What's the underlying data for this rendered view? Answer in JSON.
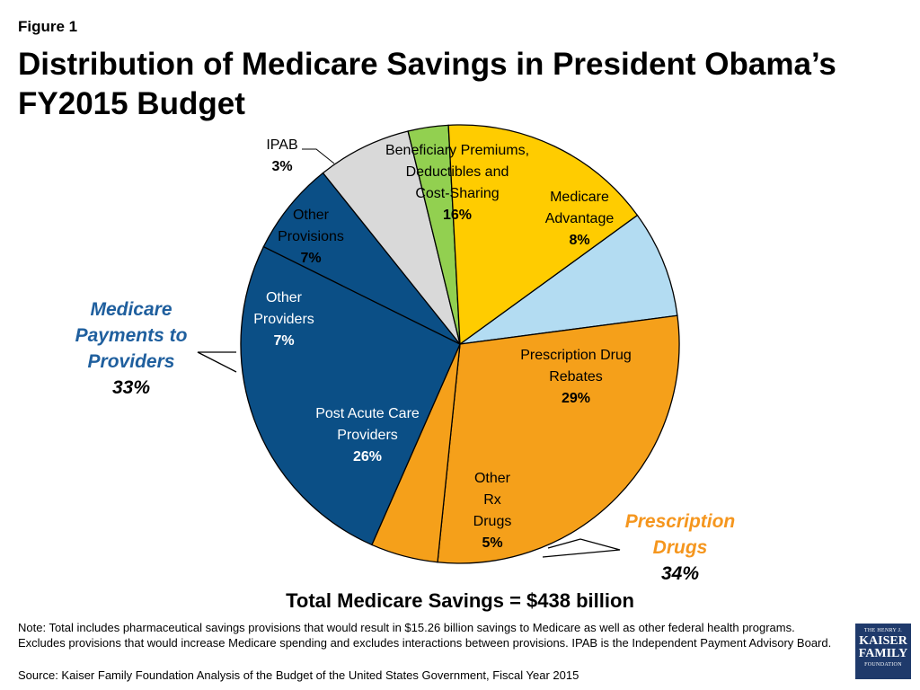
{
  "figure_label": "Figure 1",
  "title": "Distribution of Medicare Savings in President Obama’s FY2015 Budget",
  "total_label": "Total Medicare Savings = $438 billion",
  "note": "Note: Total includes pharmaceutical savings provisions that would result in $15.26 billion savings to Medicare as well as other federal health programs.  Excludes provisions that would increase Medicare spending and excludes interactions between provisions. IPAB is the Independent Payment Advisory Board.",
  "source": "Source: Kaiser Family Foundation Analysis of the Budget of the United States Government, Fiscal Year 2015",
  "logo": {
    "line1": "THE HENRY J.",
    "line2": "KAISER",
    "line3": "FAMILY",
    "line4": "FOUNDATION"
  },
  "chart_data": {
    "type": "pie",
    "title": "Distribution of Medicare Savings in President Obama’s FY2015 Budget",
    "total": "Total Medicare Savings = $438 billion",
    "slices": [
      {
        "lines": [
          "Medicare",
          "Advantage"
        ],
        "pct_label": "8%",
        "value": 8,
        "color": "#b3dcf2"
      },
      {
        "lines": [
          "Prescription Drug",
          "Rebates"
        ],
        "pct_label": "29%",
        "value": 29,
        "color": "#f5a01a"
      },
      {
        "lines": [
          "Other",
          "Rx",
          "Drugs"
        ],
        "pct_label": "5%",
        "value": 5,
        "color": "#f5a01a"
      },
      {
        "lines": [
          "Post Acute Care",
          "Providers"
        ],
        "pct_label": "26%",
        "value": 26,
        "color": "#0b4f86"
      },
      {
        "lines": [
          "Other",
          "Providers"
        ],
        "pct_label": "7%",
        "value": 7,
        "color": "#0b4f86"
      },
      {
        "lines": [
          "Other",
          "Provisions"
        ],
        "pct_label": "7%",
        "value": 7,
        "color": "#d9d9d9"
      },
      {
        "lines": [
          "IPAB"
        ],
        "pct_label": "3%",
        "value": 3,
        "color": "#92d050"
      },
      {
        "lines": [
          "Beneficiary Premiums,",
          "Deductibles and",
          "Cost-Sharing"
        ],
        "pct_label": "16%",
        "value": 16,
        "color": "#ffcc00"
      }
    ],
    "groups": [
      {
        "lines": [
          "Medicare",
          "Payments to",
          "Providers"
        ],
        "pct_label": "33%",
        "color": "#1f5f9e"
      },
      {
        "lines": [
          "Prescription",
          "Drugs"
        ],
        "pct_label": "34%",
        "color": "#f5961e"
      }
    ]
  }
}
